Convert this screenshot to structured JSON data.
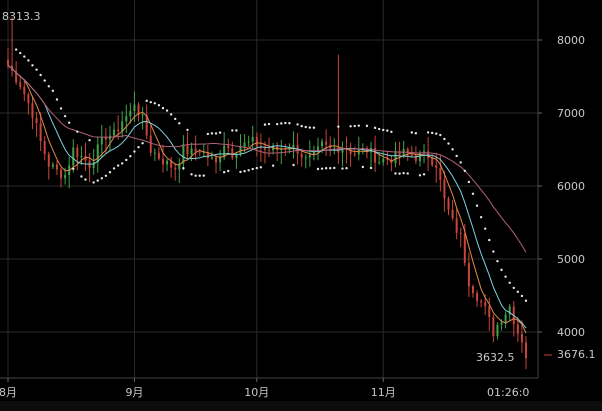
{
  "chart_data": {
    "type": "candlestick",
    "title": "",
    "xlabel": "",
    "ylabel": "",
    "y_ticks": [
      4000,
      5000,
      6000,
      7000,
      8000
    ],
    "x_ticks": [
      "8月",
      "9月",
      "10月",
      "11月"
    ],
    "x_tick_days": [
      0,
      31,
      61,
      92
    ],
    "ylim": [
      3500,
      8600
    ],
    "xlim_days": [
      -2,
      130
    ],
    "high_marker": {
      "label": "8313.3",
      "day": 1,
      "value": 8313.3
    },
    "low_marker": {
      "label": "3632.5",
      "day": 126,
      "value": 3632.5
    },
    "last_price": {
      "label": "3676.1",
      "value": 3676.1
    },
    "time_label": "01:26:0",
    "colors": {
      "up": "#3ea34a",
      "down": "#c8453a",
      "ma_fast": "#e08a4a",
      "ma_mid": "#7fd0dc",
      "ma_slow": "#b0607a",
      "sar": "#e6e6e6",
      "grid": "#2a2a2a",
      "axis_text": "#c8c8c8"
    },
    "close_anchors": [
      [
        0,
        7650
      ],
      [
        3,
        7400
      ],
      [
        6,
        7000
      ],
      [
        8,
        6600
      ],
      [
        10,
        6300
      ],
      [
        12,
        6200
      ],
      [
        14,
        6150
      ],
      [
        16,
        6500
      ],
      [
        18,
        6400
      ],
      [
        20,
        6300
      ],
      [
        22,
        6500
      ],
      [
        24,
        6700
      ],
      [
        26,
        6700
      ],
      [
        28,
        6900
      ],
      [
        30,
        7000
      ],
      [
        31,
        7150
      ],
      [
        33,
        6900
      ],
      [
        35,
        6500
      ],
      [
        37,
        6400
      ],
      [
        39,
        6300
      ],
      [
        41,
        6250
      ],
      [
        43,
        6500
      ],
      [
        45,
        6450
      ],
      [
        47,
        6500
      ],
      [
        49,
        6400
      ],
      [
        51,
        6300
      ],
      [
        53,
        6600
      ],
      [
        55,
        6450
      ],
      [
        57,
        6550
      ],
      [
        60,
        6600
      ],
      [
        63,
        6500
      ],
      [
        66,
        6500
      ],
      [
        69,
        6550
      ],
      [
        71,
        6500
      ],
      [
        73,
        6350
      ],
      [
        75,
        6400
      ],
      [
        77,
        6550
      ],
      [
        79,
        6500
      ],
      [
        82,
        6550
      ],
      [
        85,
        6450
      ],
      [
        88,
        6500
      ],
      [
        91,
        6350
      ],
      [
        94,
        6380
      ],
      [
        97,
        6450
      ],
      [
        100,
        6400
      ],
      [
        103,
        6420
      ],
      [
        105,
        6300
      ],
      [
        107,
        5800
      ],
      [
        109,
        5500
      ],
      [
        111,
        5300
      ],
      [
        113,
        4700
      ],
      [
        115,
        4500
      ],
      [
        117,
        4300
      ],
      [
        119,
        4000
      ],
      [
        121,
        4200
      ],
      [
        123,
        4350
      ],
      [
        125,
        4000
      ],
      [
        126,
        3900
      ],
      [
        127,
        3676
      ]
    ],
    "spikes": [
      {
        "day": 81,
        "high": 7800,
        "low": 6300
      },
      {
        "day": 1,
        "high": 8313,
        "low": 7500
      }
    ]
  }
}
